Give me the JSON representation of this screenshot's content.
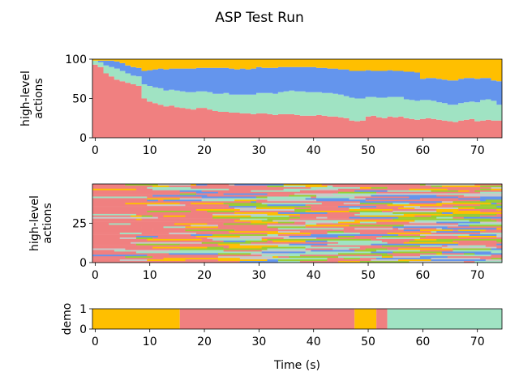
{
  "figure": {
    "title": "ASP Test Run"
  },
  "colors": {
    "coral": "#f08080",
    "mint": "#a0e3c3",
    "blue": "#6495ed",
    "gold": "#ffbf00",
    "green": "#9acd32",
    "gray": "#c8c8c8"
  },
  "chart_data": [
    {
      "type": "area",
      "name": "stacked-actions",
      "ylabel": "high-level\nactions",
      "xlim": [
        -0.5,
        74.5
      ],
      "ylim": [
        0,
        100
      ],
      "xticks": [
        0,
        10,
        20,
        30,
        40,
        50,
        60,
        70
      ],
      "yticks": [
        0,
        50,
        100
      ],
      "x_step": 1,
      "series": [
        {
          "color": "coral",
          "values": [
            93,
            90,
            82,
            78,
            74,
            72,
            70,
            68,
            66,
            50,
            46,
            44,
            42,
            40,
            41,
            39,
            38,
            37,
            36,
            38,
            38,
            36,
            34,
            33,
            33,
            32,
            32,
            31,
            31,
            30,
            31,
            31,
            30,
            29,
            30,
            30,
            30,
            29,
            28,
            28,
            28,
            29,
            28,
            27,
            27,
            26,
            25,
            22,
            21,
            22,
            27,
            28,
            26,
            25,
            27,
            26,
            27,
            25,
            24,
            23,
            24,
            25,
            24,
            23,
            22,
            21,
            20,
            22,
            23,
            24,
            21,
            22,
            23,
            22,
            22
          ]
        },
        {
          "color": "mint",
          "values": [
            5,
            6,
            10,
            12,
            14,
            13,
            12,
            11,
            12,
            18,
            20,
            20,
            21,
            20,
            20,
            21,
            21,
            21,
            22,
            21,
            21,
            22,
            22,
            23,
            24,
            23,
            23,
            24,
            24,
            25,
            26,
            26,
            27,
            27,
            28,
            29,
            30,
            30,
            31,
            30,
            30,
            29,
            29,
            30,
            29,
            29,
            28,
            29,
            29,
            28,
            25,
            24,
            25,
            26,
            25,
            26,
            25,
            24,
            24,
            24,
            24,
            23,
            23,
            22,
            22,
            21,
            22,
            22,
            22,
            22,
            24,
            26,
            26,
            25,
            20
          ]
        },
        {
          "color": "blue",
          "values": [
            0,
            2,
            6,
            8,
            9,
            10,
            10,
            11,
            11,
            17,
            20,
            23,
            25,
            27,
            27,
            28,
            29,
            30,
            30,
            30,
            30,
            31,
            33,
            33,
            32,
            33,
            32,
            33,
            32,
            33,
            33,
            32,
            32,
            33,
            32,
            31,
            30,
            31,
            31,
            32,
            32,
            31,
            32,
            31,
            32,
            32,
            34,
            34,
            35,
            35,
            34,
            33,
            34,
            34,
            34,
            33,
            33,
            35,
            36,
            36,
            27,
            28,
            29,
            30,
            30,
            31,
            31,
            31,
            31,
            30,
            30,
            28,
            27,
            26,
            30
          ]
        },
        {
          "color": "gold",
          "values": [
            2,
            2,
            2,
            2,
            3,
            5,
            8,
            10,
            11,
            15,
            14,
            13,
            12,
            13,
            12,
            12,
            12,
            12,
            12,
            11,
            11,
            11,
            11,
            11,
            11,
            12,
            13,
            12,
            13,
            12,
            10,
            11,
            11,
            11,
            10,
            10,
            10,
            10,
            10,
            10,
            10,
            11,
            11,
            12,
            12,
            13,
            13,
            15,
            15,
            15,
            14,
            15,
            15,
            15,
            14,
            15,
            15,
            16,
            16,
            17,
            25,
            24,
            24,
            25,
            26,
            27,
            27,
            25,
            24,
            24,
            25,
            24,
            24,
            27,
            28
          ]
        }
      ]
    },
    {
      "type": "heatmap",
      "name": "action-raster",
      "ylabel": "high-level\nactions",
      "xlim": [
        -0.5,
        74.5
      ],
      "ylim": [
        0,
        50
      ],
      "xticks": [
        0,
        10,
        20,
        30,
        40,
        50,
        60,
        70
      ],
      "yticks": [
        0,
        25
      ],
      "rows": 50,
      "seed": 7
    },
    {
      "type": "heatmap",
      "name": "demo-timeline",
      "ylabel": "demo",
      "xlabel": "Time (s)",
      "xlim": [
        -0.5,
        74.5
      ],
      "ylim": [
        0,
        1
      ],
      "xticks": [
        0,
        10,
        20,
        30,
        40,
        50,
        60,
        70
      ],
      "yticks": [
        0,
        1
      ],
      "segments": [
        {
          "start": -0.5,
          "end": 15.5,
          "color": "gold"
        },
        {
          "start": 15.5,
          "end": 47.5,
          "color": "coral"
        },
        {
          "start": 47.5,
          "end": 51.5,
          "color": "gold"
        },
        {
          "start": 51.5,
          "end": 53.5,
          "color": "coral"
        },
        {
          "start": 53.5,
          "end": 74.5,
          "color": "mint"
        }
      ]
    }
  ]
}
